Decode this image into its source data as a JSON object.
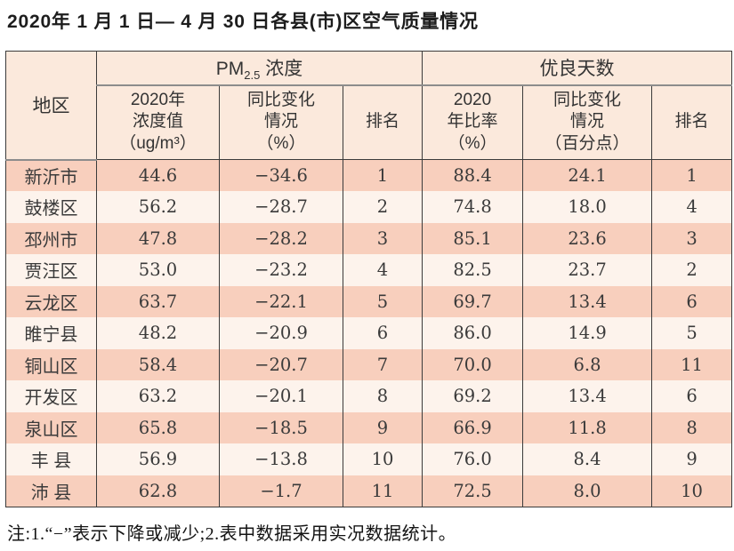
{
  "title": "2020年 1 月 1 日— 4 月 30 日各县(市)区空气质量情况",
  "table": {
    "region_header": "地区",
    "group1_prefix": "PM",
    "group1_sub": "2.5",
    "group1_suffix": " 浓度",
    "group2": "优良天数",
    "col_headers": [
      "2020年\n浓度值\n（ug/m³）",
      "同比变化\n情况\n（%）",
      "排名",
      "2020\n年比率\n（%）",
      "同比变化\n情况\n（百分点）",
      "排名"
    ],
    "rows": [
      [
        "新沂市",
        "44.6",
        "−34.6",
        "1",
        "88.4",
        "24.1",
        "1"
      ],
      [
        "鼓楼区",
        "56.2",
        "−28.7",
        "2",
        "74.8",
        "18.0",
        "4"
      ],
      [
        "邳州市",
        "47.8",
        "−28.2",
        "3",
        "85.1",
        "23.6",
        "3"
      ],
      [
        "贾汪区",
        "53.0",
        "−23.2",
        "4",
        "82.5",
        "23.7",
        "2"
      ],
      [
        "云龙区",
        "63.7",
        "−22.1",
        "5",
        "69.7",
        "13.4",
        "6"
      ],
      [
        "睢宁县",
        "48.2",
        "−20.9",
        "6",
        "86.0",
        "14.9",
        "5"
      ],
      [
        "铜山区",
        "58.4",
        "−20.7",
        "7",
        "70.0",
        "6.8",
        "11"
      ],
      [
        "开发区",
        "63.2",
        "−20.1",
        "8",
        "69.2",
        "13.4",
        "6"
      ],
      [
        "泉山区",
        "65.8",
        "−18.5",
        "9",
        "66.9",
        "11.8",
        "8"
      ],
      [
        "丰 县",
        "56.9",
        "−13.8",
        "10",
        "76.0",
        "8.4",
        "9"
      ],
      [
        "沛 县",
        "62.8",
        "−1.7",
        "11",
        "72.5",
        "8.0",
        "10"
      ]
    ]
  },
  "footnote": "注:1.“−”表示下降或减少;2.表中数据采用实况数据统计。",
  "colors": {
    "row_band": "#f8cfbd",
    "row_band_alt": "#fdf3ec",
    "header_bg": "#fbe9dc",
    "border_dark": "#3b3b3b",
    "group_underline": "#8c8c8c",
    "text": "#333333"
  }
}
